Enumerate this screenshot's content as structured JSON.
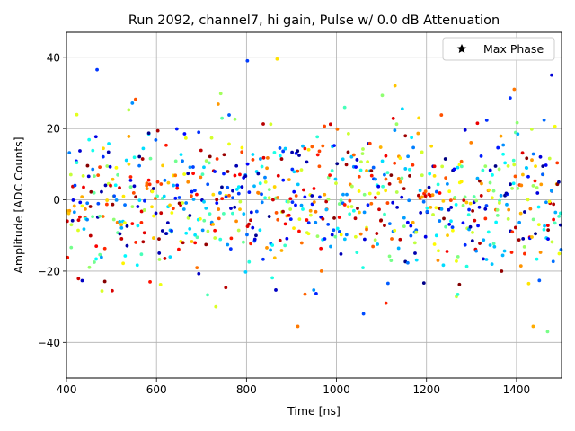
{
  "chart_data": {
    "type": "scatter",
    "title": "Run 2092, channel7, hi gain, Pulse w/ 0.0 dB Attenuation",
    "xlabel": "Time [ns]",
    "ylabel": "Amplitude [ADC Counts]",
    "xlim": [
      400,
      1500
    ],
    "ylim": [
      -50,
      47
    ],
    "xticks": [
      400,
      600,
      800,
      1000,
      1200,
      1400
    ],
    "xtick_labels": [
      "400",
      "600",
      "800",
      "1000",
      "1200",
      "1400"
    ],
    "yticks": [
      -40,
      -20,
      0,
      20,
      40
    ],
    "ytick_labels": [
      "−40",
      "−20",
      "0",
      "20",
      "40"
    ],
    "grid": true,
    "legend": {
      "placement": "top-right",
      "entries": [
        {
          "label": "Max Phase",
          "marker": "star",
          "color": "#000000"
        }
      ]
    },
    "colormap": "jet",
    "x_start": 402,
    "x_end": 1500,
    "x_step": 4,
    "points_per_time": 3,
    "noise_sigma": 11,
    "outliers": [
      {
        "x": 468,
        "y": 36.5
      },
      {
        "x": 802,
        "y": 39
      },
      {
        "x": 868,
        "y": 39.5
      },
      {
        "x": 1130,
        "y": 32
      },
      {
        "x": 1395,
        "y": 31
      },
      {
        "x": 1478,
        "y": 35
      },
      {
        "x": 914,
        "y": -35.5
      },
      {
        "x": 1469,
        "y": -37
      },
      {
        "x": 732,
        "y": -30
      },
      {
        "x": 1060,
        "y": -32
      },
      {
        "x": 1110,
        "y": -29
      },
      {
        "x": 1437,
        "y": -35.5
      }
    ]
  }
}
